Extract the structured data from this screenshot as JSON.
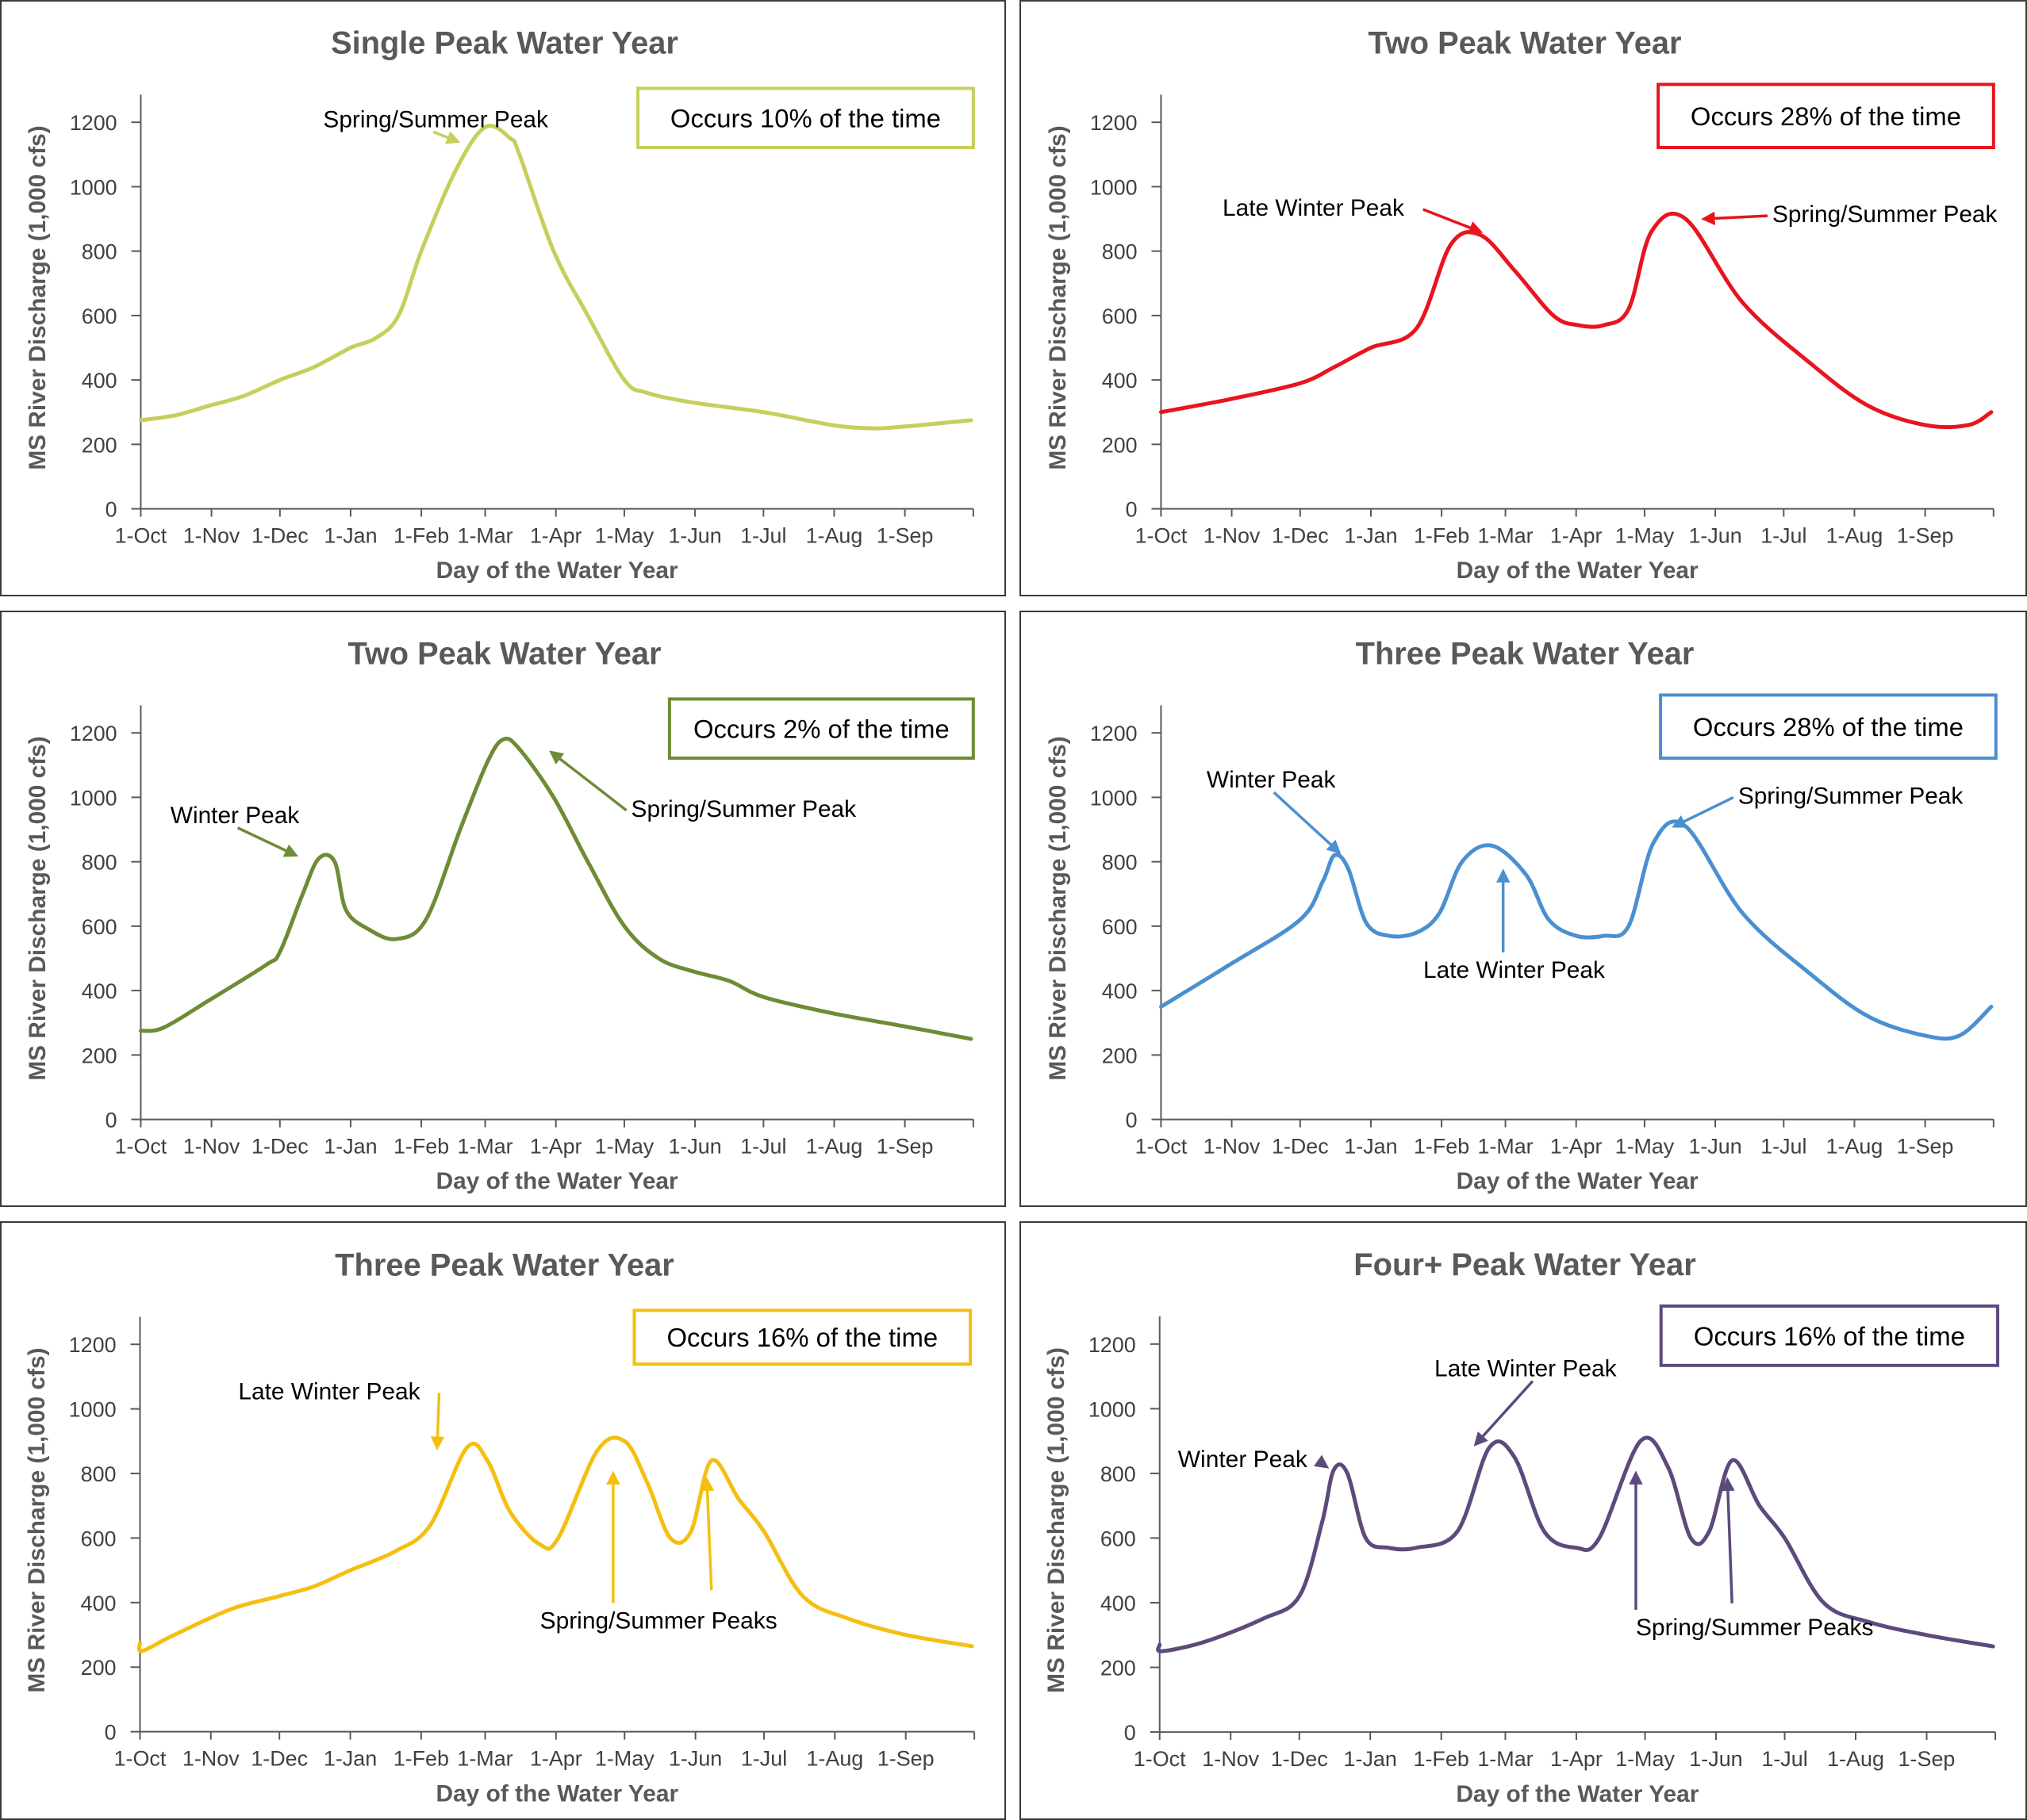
{
  "axis_common": {
    "x_ticks": [
      "1-Oct",
      "1-Nov",
      "1-Dec",
      "1-Jan",
      "1-Feb",
      "1-Mar",
      "1-Apr",
      "1-May",
      "1-Jun",
      "1-Jul",
      "1-Aug",
      "1-Sep"
    ],
    "y_ticks": [
      0,
      200,
      400,
      600,
      800,
      1000,
      1200
    ],
    "xlabel": "Day of the Water Year",
    "ylabel": "MS River Discharge (1,000 cfs)"
  },
  "chart_data": [
    {
      "type": "line",
      "title": "Single Peak Water Year",
      "color": "#c6cf5b",
      "occurs": "Occurs 10% of the time",
      "xlabel": "Day of the Water Year",
      "ylabel": "MS River Discharge (1,000 cfs)",
      "ylim": [
        0,
        1200
      ],
      "x": [
        0,
        15,
        30,
        45,
        61,
        76,
        92,
        103,
        113,
        123,
        138,
        151,
        162,
        166,
        181,
        196,
        212,
        222,
        242,
        273,
        303,
        320,
        334,
        364
      ],
      "values": [
        275,
        290,
        320,
        350,
        400,
        440,
        500,
        530,
        600,
        800,
        1050,
        1185,
        1150,
        1100,
        800,
        600,
        400,
        360,
        330,
        300,
        260,
        250,
        255,
        275
      ],
      "annotations": [
        {
          "text": "Spring/Summer Peak",
          "x": 80,
          "y": 1185,
          "ax": 139,
          "ay": 1140
        }
      ]
    },
    {
      "type": "line",
      "title": "Two Peak Water Year",
      "color": "#e8141e",
      "occurs": "Occurs 28% of the time",
      "xlabel": "Day of the Water Year",
      "ylabel": "MS River Discharge (1,000 cfs)",
      "ylim": [
        0,
        1200
      ],
      "x": [
        0,
        30,
        61,
        76,
        92,
        112,
        127,
        140,
        155,
        172,
        183,
        194,
        205,
        215,
        230,
        255,
        285,
        310,
        335,
        354,
        364
      ],
      "values": [
        300,
        340,
        390,
        440,
        500,
        560,
        820,
        850,
        740,
        600,
        570,
        570,
        620,
        860,
        900,
        640,
        450,
        320,
        260,
        260,
        300
      ],
      "annotations": [
        {
          "text": "Late Winter Peak",
          "x": 27,
          "y": 910,
          "ax": 140,
          "ay": 860
        },
        {
          "text": "Spring/Summer Peak",
          "x": 268,
          "y": 890,
          "ax": 238,
          "ay": 900
        }
      ]
    },
    {
      "type": "line",
      "title": "Two Peak Water Year",
      "color": "#6e8c35",
      "occurs": "Occurs 2% of the time",
      "xlabel": "Day of the Water Year",
      "ylabel": "MS River Discharge (1,000 cfs)",
      "ylim": [
        0,
        1200
      ],
      "x": [
        0,
        10,
        30,
        55,
        61,
        71,
        78,
        85,
        90,
        100,
        112,
        125,
        140,
        152,
        159,
        166,
        181,
        196,
        212,
        227,
        242,
        258,
        273,
        303,
        334,
        364
      ],
      "values": [
        275,
        285,
        370,
        480,
        520,
        700,
        810,
        800,
        650,
        590,
        560,
        620,
        900,
        1110,
        1180,
        1150,
        1000,
        800,
        600,
        500,
        460,
        430,
        380,
        330,
        290,
        250
      ],
      "annotations": [
        {
          "text": "Winter Peak",
          "x": 13,
          "y": 920,
          "ax": 68,
          "ay": 820
        },
        {
          "text": "Spring/Summer Peak",
          "x": 215,
          "y": 940,
          "ax": 180,
          "ay": 1140
        }
      ]
    },
    {
      "type": "line",
      "title": "Three Peak Water Year",
      "color": "#4a90d0",
      "occurs": "Occurs 28% of the time",
      "xlabel": "Day of the Water Year",
      "ylabel": "MS River Discharge (1,000 cfs)",
      "ylim": [
        0,
        1200
      ],
      "x": [
        0,
        30,
        61,
        71,
        76,
        82,
        90,
        100,
        112,
        122,
        132,
        145,
        160,
        170,
        182,
        194,
        205,
        216,
        230,
        255,
        285,
        310,
        335,
        350,
        364
      ],
      "values": [
        350,
        480,
        620,
        740,
        820,
        780,
        610,
        570,
        580,
        640,
        800,
        850,
        760,
        620,
        570,
        570,
        600,
        860,
        910,
        640,
        450,
        320,
        260,
        260,
        350
      ],
      "annotations": [
        {
          "text": "Winter Peak",
          "x": 20,
          "y": 1030,
          "ax": 78,
          "ay": 830
        },
        {
          "text": "Late Winter Peak",
          "x": 115,
          "y": 440,
          "ax": 150,
          "ay": 770
        },
        {
          "text": "Spring/Summer Peak",
          "x": 253,
          "y": 980,
          "ax": 225,
          "ay": 910
        }
      ]
    },
    {
      "type": "line",
      "title": "Three Peak Water Year",
      "color": "#f5bf12",
      "occurs": "Occurs 16% of the time",
      "xlabel": "Day of the Water Year",
      "ylabel": "MS River Discharge (1,000 cfs)",
      "ylim": [
        0,
        1200
      ],
      "x": [
        0,
        1,
        15,
        40,
        61,
        76,
        92,
        112,
        127,
        143,
        152,
        162,
        175,
        183,
        200,
        212,
        222,
        232,
        241,
        250,
        262,
        273,
        290,
        310,
        335,
        364
      ],
      "values": [
        275,
        250,
        300,
        380,
        420,
        450,
        500,
        560,
        640,
        880,
        840,
        680,
        580,
        600,
        870,
        900,
        770,
        600,
        620,
        840,
        720,
        620,
        420,
        350,
        300,
        265
      ],
      "annotations": [
        {
          "text": "Late Winter Peak",
          "x": 43,
          "y": 1030,
          "ax": 130,
          "ay": 880
        },
        {
          "text": "Spring/Summer Peaks",
          "x": 175,
          "y": 320,
          "ax": 207,
          "ay": 800
        },
        {
          "text": "",
          "x": 250,
          "y": 360,
          "ax": 248,
          "ay": 780
        }
      ]
    },
    {
      "type": "line",
      "title": "Four+ Peak Water Year",
      "color": "#5d4a7d",
      "occurs": "Occurs 16% of the time",
      "xlabel": "Day of the Water Year",
      "ylabel": "MS River Discharge (1,000 cfs)",
      "ylim": [
        0,
        1200
      ],
      "x": [
        0,
        1,
        20,
        45,
        61,
        71,
        76,
        82,
        90,
        100,
        112,
        130,
        144,
        155,
        168,
        182,
        192,
        210,
        222,
        232,
        240,
        250,
        262,
        273,
        290,
        310,
        335,
        364
      ],
      "values": [
        270,
        250,
        280,
        350,
        420,
        650,
        810,
        800,
        600,
        570,
        570,
        620,
        880,
        850,
        620,
        570,
        600,
        900,
        820,
        600,
        620,
        840,
        700,
        600,
        400,
        340,
        300,
        265
      ],
      "annotations": [
        {
          "text": "Winter Peak",
          "x": 8,
          "y": 820,
          "ax": 73,
          "ay": 820
        },
        {
          "text": "Late Winter Peak",
          "x": 120,
          "y": 1100,
          "ax": 138,
          "ay": 890
        },
        {
          "text": "Spring/Summer Peaks",
          "x": 208,
          "y": 300,
          "ax": 208,
          "ay": 800
        },
        {
          "text": "",
          "x": 250,
          "y": 320,
          "ax": 248,
          "ay": 780
        }
      ]
    }
  ]
}
